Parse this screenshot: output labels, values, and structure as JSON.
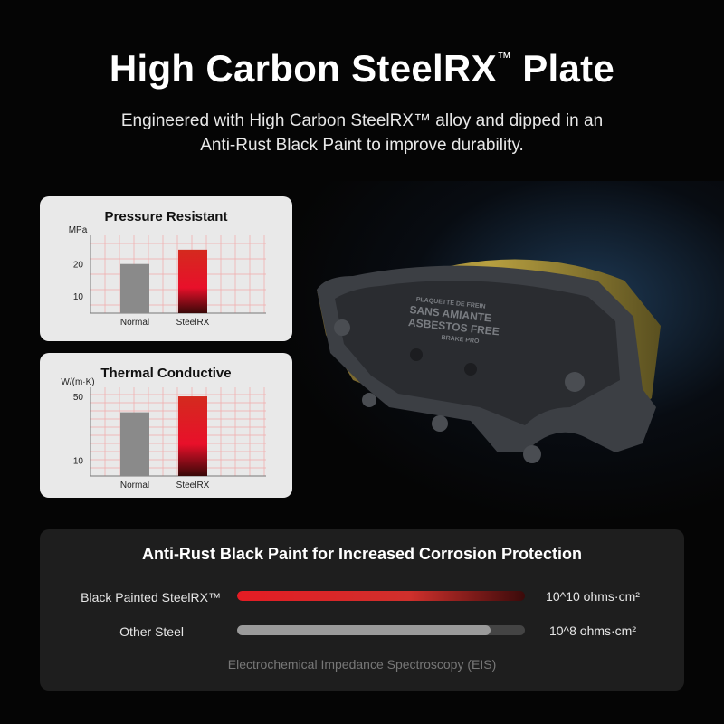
{
  "header": {
    "title": "High Carbon SteelRX",
    "title_mark": "™",
    "title_suffix": " Plate",
    "subtitle_line1": "Engineered with High Carbon SteelRX™ alloy and dipped in an",
    "subtitle_line2": "Anti-Rust Black Paint to improve durability."
  },
  "product": {
    "pad_text": [
      "PLAQUETTE DE FREIN",
      "SANS AMIANTE",
      "ASBESTOS FREE",
      "BRAKE PRO"
    ]
  },
  "colors": {
    "accent_red": "#d42a1e",
    "normal_gray": "#8a8a8a",
    "card_bg": "#e9e9e9",
    "grid": "#f2a9a9"
  },
  "chart_data": [
    {
      "type": "bar",
      "title": "Pressure Resistant",
      "ylabel": "MPa",
      "categories": [
        "Normal",
        "SteelRX"
      ],
      "values": [
        20,
        24.5
      ],
      "yticks": [
        10,
        20
      ],
      "ylim": [
        4.6,
        29
      ],
      "grid": true
    },
    {
      "type": "bar",
      "title": "Thermal Conductive",
      "ylabel": "W/(m·K)",
      "categories": [
        "Normal",
        "SteelRX"
      ],
      "values": [
        40,
        50
      ],
      "yticks": [
        10,
        50
      ],
      "ylim": [
        0,
        55.7
      ],
      "grid": true
    },
    {
      "type": "bar",
      "orientation": "horizontal",
      "title": "Anti-Rust Black Paint for Increased Corrosion Protection",
      "categories": [
        "Black Painted SteelRX™",
        "Other Steel"
      ],
      "value_labels": [
        "10^10 ohms·cm²",
        "10^8 ohms·cm²"
      ],
      "fill_percent": [
        100,
        88
      ],
      "xlabel": "Electrochemical Impedance Spectroscopy (EIS)"
    }
  ]
}
